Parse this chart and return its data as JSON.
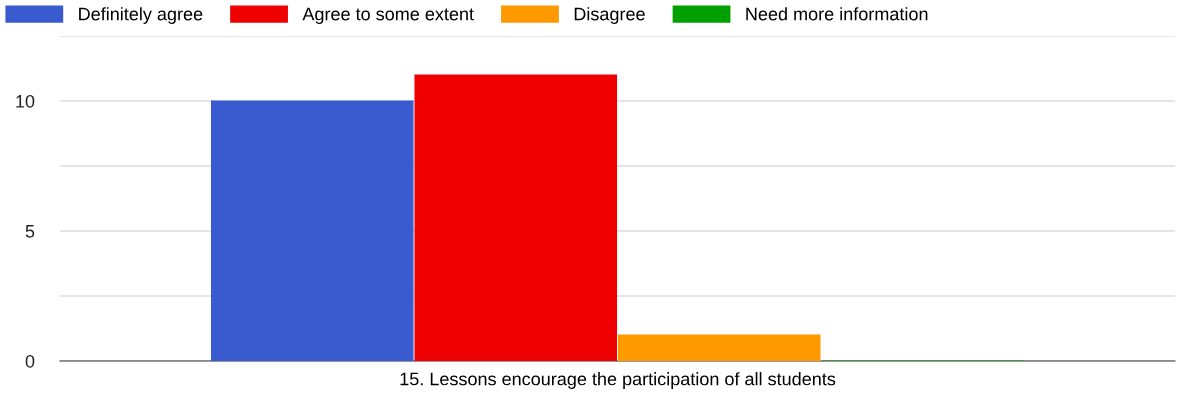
{
  "chart_data": {
    "type": "bar",
    "categories": [
      "15. Lessons encourage the participation of all students"
    ],
    "series": [
      {
        "name": "Definitely agree",
        "color": "#3a5bd0",
        "values": [
          10
        ]
      },
      {
        "name": "Agree to some extent",
        "color": "#ee0000",
        "values": [
          11
        ]
      },
      {
        "name": "Disagree",
        "color": "#ff9900",
        "values": [
          1
        ]
      },
      {
        "name": "Need more information",
        "color": "#00a000",
        "values": [
          0
        ]
      }
    ],
    "ylim": [
      0,
      12.5
    ],
    "yticks": [
      0,
      {
        "value": 2.5,
        "label": null
      },
      5,
      {
        "value": 7.5,
        "label": null
      },
      10,
      {
        "value": 12.5,
        "label": null
      }
    ],
    "grid": "y",
    "legend": "top left"
  }
}
